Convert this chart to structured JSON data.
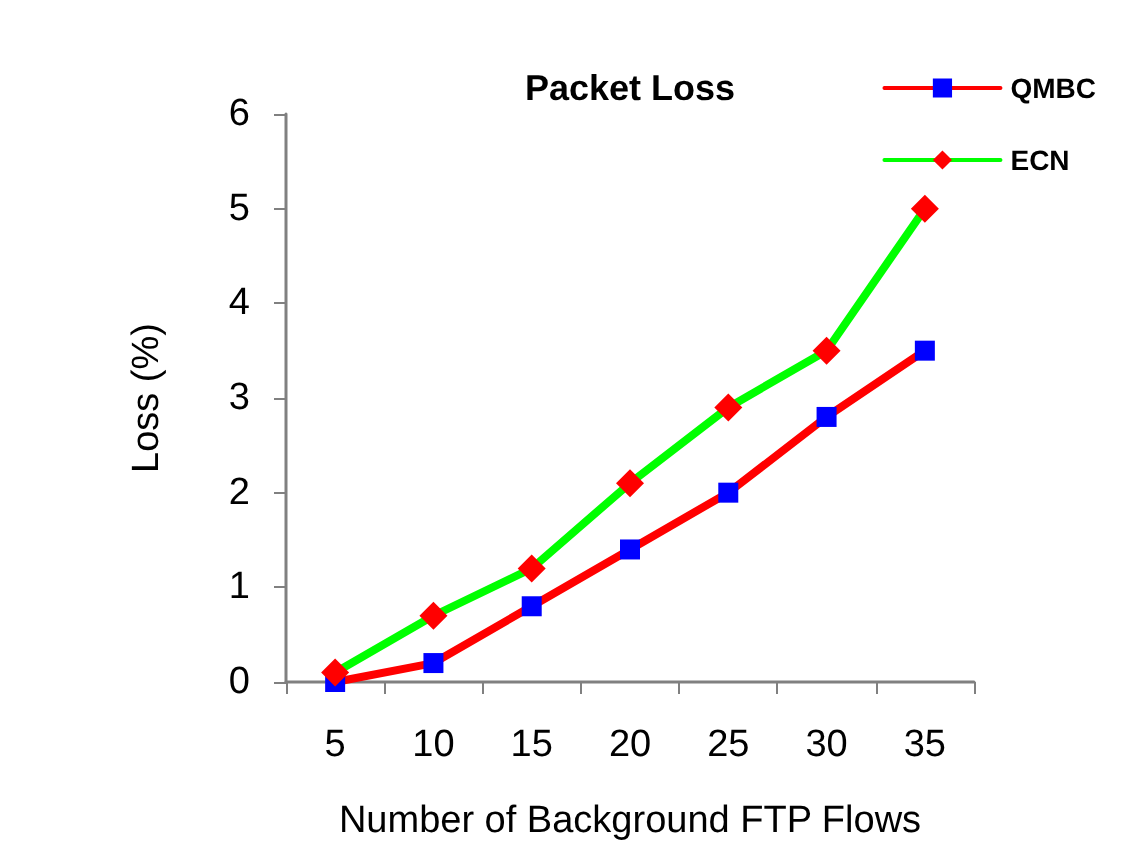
{
  "chart_data": {
    "type": "line",
    "title": "Packet Loss",
    "xlabel": "Number of Background FTP Flows",
    "ylabel": "Loss (%)",
    "categories": [
      "5",
      "10",
      "15",
      "20",
      "25",
      "30",
      "35"
    ],
    "series": [
      {
        "name": "QMBC",
        "color": "#ff0000",
        "marker": "square",
        "colors": [
          "#0000ff",
          "#0000ff",
          "#0000ff",
          "#0000ff",
          "#0000ff",
          "#0000ff",
          "#0000ff"
        ],
        "values": [
          0,
          0.2,
          0.8,
          1.4,
          2.0,
          2.8,
          3.5
        ]
      },
      {
        "name": "ECN",
        "color": "#00ff00",
        "marker": "diamond",
        "colors": [
          "#ff0000",
          "#ff0000",
          "#ff0000",
          "#ff0000",
          "#ff0000",
          "#ff0000",
          "#ff0000"
        ],
        "values": [
          0.1,
          0.7,
          1.2,
          2.1,
          2.9,
          3.5,
          5.0
        ]
      }
    ],
    "ylim": [
      0,
      6
    ],
    "yticks": [
      0,
      1,
      2,
      3,
      4,
      5,
      6
    ],
    "grid": false,
    "legend": "top right"
  }
}
